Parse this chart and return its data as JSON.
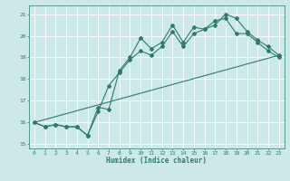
{
  "xlabel": "Humidex (Indice chaleur)",
  "bg_color": "#cce8e8",
  "grid_color": "#b0d8d8",
  "line_color": "#2e7b6e",
  "xlim": [
    -0.5,
    23.5
  ],
  "ylim": [
    14.8,
    21.4
  ],
  "yticks": [
    15,
    16,
    17,
    18,
    19,
    20,
    21
  ],
  "xticks": [
    0,
    1,
    2,
    3,
    4,
    5,
    6,
    7,
    8,
    9,
    10,
    11,
    12,
    13,
    14,
    15,
    16,
    17,
    18,
    19,
    20,
    21,
    22,
    23
  ],
  "line1_x": [
    0,
    1,
    2,
    3,
    4,
    5,
    6,
    7,
    8,
    9,
    10,
    11,
    12,
    13,
    14,
    15,
    16,
    17,
    18,
    19,
    20,
    21,
    22,
    23
  ],
  "line1_y": [
    16.0,
    15.8,
    15.9,
    15.8,
    15.8,
    15.4,
    16.7,
    16.6,
    18.4,
    19.0,
    19.9,
    19.4,
    19.7,
    20.5,
    19.7,
    20.4,
    20.3,
    20.5,
    21.0,
    20.8,
    20.2,
    19.8,
    19.5,
    19.1
  ],
  "line2_x": [
    0,
    1,
    2,
    3,
    4,
    5,
    6,
    7,
    8,
    9,
    10,
    11,
    12,
    13,
    14,
    15,
    16,
    17,
    18,
    19,
    20,
    21,
    22,
    23
  ],
  "line2_y": [
    16.0,
    15.8,
    15.9,
    15.8,
    15.8,
    15.4,
    16.5,
    17.7,
    18.3,
    18.9,
    19.3,
    19.1,
    19.5,
    20.2,
    19.5,
    20.1,
    20.3,
    20.7,
    20.8,
    20.1,
    20.1,
    19.7,
    19.3,
    19.0
  ],
  "line3_x": [
    0,
    23
  ],
  "line3_y": [
    16.0,
    19.1
  ]
}
